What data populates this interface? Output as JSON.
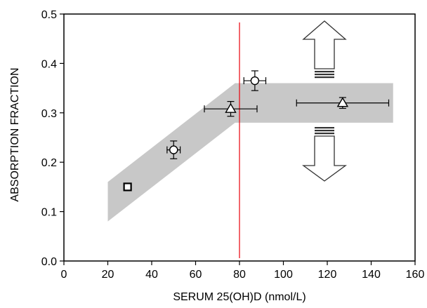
{
  "chart_data": {
    "type": "scatter",
    "title": "",
    "xlabel": "SERUM 25(OH)D (nmol/L)",
    "ylabel": "ABSORPTION FRACTION",
    "xlim": [
      0,
      160
    ],
    "ylim": [
      0,
      0.5
    ],
    "x_ticks": [
      0,
      20,
      40,
      60,
      80,
      100,
      120,
      140,
      160
    ],
    "y_ticks": [
      0.0,
      0.1,
      0.2,
      0.3,
      0.4,
      0.5
    ],
    "x_tick_labels": [
      "0",
      "20",
      "40",
      "60",
      "80",
      "100",
      "120",
      "140",
      "160"
    ],
    "y_tick_labels": [
      "0.0",
      "0.1",
      "0.2",
      "0.3",
      "0.4",
      "0.5"
    ],
    "grid": false,
    "band": {
      "color": "#c8c8c8",
      "upper": [
        {
          "x": 20,
          "y": 0.16
        },
        {
          "x": 78,
          "y": 0.36
        },
        {
          "x": 150,
          "y": 0.36
        }
      ],
      "lower": [
        {
          "x": 20,
          "y": 0.08
        },
        {
          "x": 78,
          "y": 0.28
        },
        {
          "x": 150,
          "y": 0.28
        }
      ]
    },
    "threshold_line": {
      "x": 80,
      "color": "#e8000b"
    },
    "points": [
      {
        "marker": "square",
        "x": 29,
        "y": 0.15,
        "xerr": 0,
        "yerr": 0
      },
      {
        "marker": "circle",
        "x": 50,
        "y": 0.225,
        "xerr": 3,
        "yerr": 0.018
      },
      {
        "marker": "triangle",
        "x": 76,
        "y": 0.308,
        "xerr": 12,
        "yerr": 0.015
      },
      {
        "marker": "circle",
        "x": 87,
        "y": 0.365,
        "xerr": 5,
        "yerr": 0.02
      },
      {
        "marker": "triangle",
        "x": 127,
        "y": 0.32,
        "xerr": 21,
        "yerr": 0.011
      }
    ],
    "arrows": [
      {
        "direction": "up",
        "icon": "up-arrow-icon"
      },
      {
        "direction": "down",
        "icon": "down-arrow-icon"
      }
    ]
  }
}
